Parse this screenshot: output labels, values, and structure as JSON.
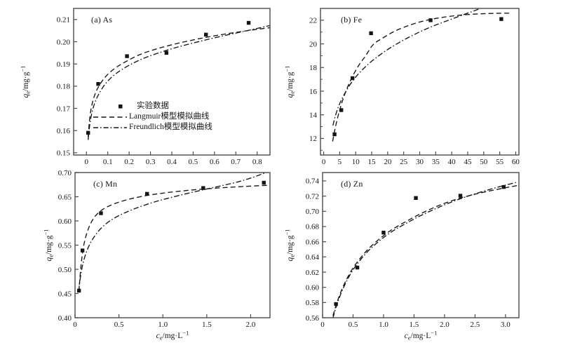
{
  "figure": {
    "background": "#ffffff",
    "frame_color": "#4a4a4a",
    "ink_color": "#151515"
  },
  "axis_labels": {
    "y_plain": "qe/mg·g-1",
    "x_plain": "ce/mg·L-1",
    "y_parts": {
      "sym": "q",
      "sub": "e",
      "mid": "/mg·g",
      "sup": "−1"
    },
    "x_parts": {
      "sym": "c",
      "sub": "e",
      "mid": "/mg·L",
      "sup": "−1"
    }
  },
  "legend": {
    "items": [
      {
        "symbol": "square-marker",
        "label": "实验数据"
      },
      {
        "symbol": "dash-line",
        "label": "Langmuir模型模拟曲线"
      },
      {
        "symbol": "dashdot-line",
        "label": "Freundlich模型模拟曲线"
      }
    ]
  },
  "chart_data": [
    {
      "id": "a",
      "type": "scatter",
      "title": "(a) As",
      "ylabel": "qe/mg·g-1",
      "xlabel": "",
      "xlim": [
        -0.06,
        0.86
      ],
      "ylim": [
        0.149,
        0.215
      ],
      "xticks": [
        0,
        0.1,
        0.2,
        0.3,
        0.4,
        0.5,
        0.6,
        0.7,
        0.8
      ],
      "xtick_labels": [
        "0",
        "0.1",
        "0.2",
        "0.3",
        "0.4",
        "0.5",
        "0.6",
        "0.7",
        "0.8"
      ],
      "yticks": [
        0.15,
        0.16,
        0.17,
        0.18,
        0.19,
        0.2,
        0.21
      ],
      "ytick_labels": [
        "0.15",
        "0.16",
        "0.17",
        "0.18",
        "0.19",
        "0.20",
        "0.21"
      ],
      "y_minor_step": 0,
      "points": [
        [
          0.008,
          0.159
        ],
        [
          0.055,
          0.181
        ],
        [
          0.19,
          0.1935
        ],
        [
          0.375,
          0.195
        ],
        [
          0.56,
          0.2032
        ],
        [
          0.76,
          0.2085
        ]
      ],
      "series": [
        {
          "name": "Langmuir模型模拟曲线",
          "style": "dash",
          "values": [
            [
              0.008,
              0.1572
            ],
            [
              0.015,
              0.1652
            ],
            [
              0.025,
              0.1713
            ],
            [
              0.04,
              0.1763
            ],
            [
              0.06,
              0.1803
            ],
            [
              0.09,
              0.1843
            ],
            [
              0.13,
              0.1878
            ],
            [
              0.18,
              0.1908
            ],
            [
              0.25,
              0.1942
            ],
            [
              0.33,
              0.1968
            ],
            [
              0.42,
              0.1991
            ],
            [
              0.52,
              0.2012
            ],
            [
              0.62,
              0.203
            ],
            [
              0.72,
              0.2045
            ],
            [
              0.8,
              0.2056
            ],
            [
              0.86,
              0.2063
            ]
          ]
        },
        {
          "name": "Freundlich模型模拟曲线",
          "style": "dashdot",
          "values": [
            [
              0.008,
              0.1558
            ],
            [
              0.015,
              0.1622
            ],
            [
              0.025,
              0.1678
            ],
            [
              0.04,
              0.1727
            ],
            [
              0.06,
              0.1768
            ],
            [
              0.09,
              0.1812
            ],
            [
              0.13,
              0.185
            ],
            [
              0.18,
              0.1883
            ],
            [
              0.25,
              0.1918
            ],
            [
              0.33,
              0.1947
            ],
            [
              0.42,
              0.1974
            ],
            [
              0.52,
              0.1999
            ],
            [
              0.62,
              0.2022
            ],
            [
              0.72,
              0.2043
            ],
            [
              0.8,
              0.206
            ],
            [
              0.86,
              0.2073
            ]
          ]
        }
      ]
    },
    {
      "id": "b",
      "type": "scatter",
      "title": "(b) Fe",
      "ylabel": "qe/mg·g-1",
      "xlabel": "",
      "xlim": [
        -1,
        61
      ],
      "ylim": [
        10.6,
        23
      ],
      "xticks": [
        0,
        5,
        10,
        15,
        20,
        25,
        30,
        35,
        40,
        45,
        50,
        55,
        60
      ],
      "xtick_labels": [
        "0",
        "5",
        "10",
        "15",
        "20",
        "25",
        "30",
        "35",
        "40",
        "45",
        "50",
        "55",
        "60"
      ],
      "yticks": [
        12,
        14,
        16,
        18,
        20,
        22
      ],
      "ytick_labels": [
        "12",
        "14",
        "16",
        "18",
        "20",
        "22"
      ],
      "y_minor_step": 1,
      "points": [
        [
          3.4,
          12.35
        ],
        [
          5.5,
          14.4
        ],
        [
          9,
          17.1
        ],
        [
          14.8,
          20.9
        ],
        [
          33.4,
          22
        ],
        [
          55.5,
          22.1
        ]
      ],
      "series": [
        {
          "name": "Langmuir模型模拟曲线",
          "style": "dash",
          "values": [
            [
              2.8,
              11.75
            ],
            [
              3.5,
              12.75
            ],
            [
              4.3,
              13.7
            ],
            [
              5.2,
              14.6
            ],
            [
              6.2,
              15.45
            ],
            [
              7.4,
              16.3
            ],
            [
              9,
              17.25
            ],
            [
              11,
              18.2
            ],
            [
              13,
              18.95
            ],
            [
              15.5,
              19.95
            ],
            [
              18.5,
              20.5
            ],
            [
              22,
              21.05
            ],
            [
              26,
              21.5
            ],
            [
              30,
              21.85
            ],
            [
              34,
              22.1
            ],
            [
              38,
              22.28
            ],
            [
              43,
              22.44
            ],
            [
              48,
              22.53
            ],
            [
              53,
              22.58
            ],
            [
              58,
              22.6
            ]
          ]
        },
        {
          "name": "Freundlich模型模拟曲线",
          "style": "dashdot",
          "values": [
            [
              2.9,
              13.1
            ],
            [
              3.6,
              13.85
            ],
            [
              4.5,
              14.6
            ],
            [
              5.6,
              15.3
            ],
            [
              7,
              16
            ],
            [
              8.6,
              16.7
            ],
            [
              10.5,
              17.35
            ],
            [
              12.8,
              18
            ],
            [
              15.3,
              18.6
            ],
            [
              18,
              19.15
            ],
            [
              21,
              19.7
            ],
            [
              24.5,
              20.25
            ],
            [
              28,
              20.75
            ],
            [
              31.5,
              21.2
            ],
            [
              35,
              21.6
            ],
            [
              38.5,
              21.95
            ],
            [
              42,
              22.3
            ],
            [
              45.5,
              22.65
            ],
            [
              48.5,
              22.95
            ],
            [
              51,
              23.25
            ]
          ]
        }
      ]
    },
    {
      "id": "c",
      "type": "scatter",
      "title": "(c) Mn",
      "ylabel": "qe/mg·g-1",
      "xlabel": "ce/mg·L-1",
      "xlim": [
        0,
        2.22
      ],
      "ylim": [
        0.4,
        0.7
      ],
      "xticks": [
        0,
        0.5,
        1.0,
        1.5,
        2.0
      ],
      "xtick_labels": [
        "0",
        "0.5",
        "1.0",
        "1.5",
        "2.0"
      ],
      "yticks": [
        0.4,
        0.45,
        0.5,
        0.55,
        0.6,
        0.65,
        0.7
      ],
      "ytick_labels": [
        "0.40",
        "0.45",
        "0.50",
        "0.55",
        "0.60",
        "0.65",
        "0.70"
      ],
      "y_minor_step": 0,
      "points": [
        [
          0.045,
          0.456
        ],
        [
          0.085,
          0.539
        ],
        [
          0.295,
          0.616
        ],
        [
          0.82,
          0.656
        ],
        [
          1.46,
          0.668
        ],
        [
          2.15,
          0.679
        ]
      ],
      "series": [
        {
          "name": "Langmuir模型模拟曲线",
          "style": "dash",
          "values": [
            [
              0.042,
              0.452
            ],
            [
              0.055,
              0.48
            ],
            [
              0.07,
              0.511
            ],
            [
              0.09,
              0.54
            ],
            [
              0.115,
              0.5625
            ],
            [
              0.145,
              0.5805
            ],
            [
              0.18,
              0.5955
            ],
            [
              0.22,
              0.6075
            ],
            [
              0.27,
              0.6175
            ],
            [
              0.33,
              0.6255
            ],
            [
              0.42,
              0.6335
            ],
            [
              0.52,
              0.64
            ],
            [
              0.65,
              0.6465
            ],
            [
              0.8,
              0.652
            ],
            [
              0.95,
              0.6562
            ],
            [
              1.15,
              0.6607
            ],
            [
              1.4,
              0.665
            ],
            [
              1.65,
              0.6683
            ],
            [
              1.95,
              0.6715
            ],
            [
              2.22,
              0.6738
            ]
          ]
        },
        {
          "name": "Freundlich模型模拟曲线",
          "style": "dashdot",
          "values": [
            [
              0.042,
              0.4555
            ],
            [
              0.06,
              0.482
            ],
            [
              0.08,
              0.5035
            ],
            [
              0.105,
              0.522
            ],
            [
              0.135,
              0.5385
            ],
            [
              0.17,
              0.5525
            ],
            [
              0.21,
              0.565
            ],
            [
              0.26,
              0.5775
            ],
            [
              0.32,
              0.589
            ],
            [
              0.4,
              0.6005
            ],
            [
              0.5,
              0.611
            ],
            [
              0.62,
              0.621
            ],
            [
              0.75,
              0.63
            ],
            [
              0.9,
              0.639
            ],
            [
              1.05,
              0.6465
            ],
            [
              1.25,
              0.6555
            ],
            [
              1.45,
              0.664
            ],
            [
              1.65,
              0.672
            ],
            [
              1.85,
              0.6805
            ],
            [
              2.0,
              0.6885
            ],
            [
              2.1,
              0.695
            ],
            [
              2.18,
              0.7005
            ]
          ]
        }
      ]
    },
    {
      "id": "d",
      "type": "scatter",
      "title": "(d) Zn",
      "ylabel": "qe/mg·g-1",
      "xlabel": "ce/mg·L-1",
      "xlim": [
        0,
        3.22
      ],
      "ylim": [
        0.56,
        0.751
      ],
      "xticks": [
        0,
        0.5,
        1.0,
        1.5,
        2.0,
        2.5,
        3.0
      ],
      "xtick_labels": [
        "0",
        "0.5",
        "1.0",
        "1.5",
        "2.0",
        "2.5",
        "3.0"
      ],
      "yticks": [
        0.56,
        0.58,
        0.6,
        0.62,
        0.64,
        0.66,
        0.68,
        0.7,
        0.72,
        0.74
      ],
      "ytick_labels": [
        "0.56",
        "0.58",
        "0.60",
        "0.62",
        "0.64",
        "0.66",
        "0.68",
        "0.70",
        "0.72",
        "0.74"
      ],
      "y_minor_step": 0,
      "points": [
        [
          0.22,
          0.578
        ],
        [
          0.57,
          0.626
        ],
        [
          1.0,
          0.672
        ],
        [
          1.53,
          0.7175
        ],
        [
          2.26,
          0.7205
        ],
        [
          2.97,
          0.732
        ]
      ],
      "series": [
        {
          "name": "Langmuir模型模拟曲线",
          "style": "dash",
          "values": [
            [
              0.17,
              0.5625
            ],
            [
              0.22,
              0.576
            ],
            [
              0.3,
              0.594
            ],
            [
              0.4,
              0.6115
            ],
            [
              0.5,
              0.6255
            ],
            [
              0.62,
              0.6385
            ],
            [
              0.75,
              0.6505
            ],
            [
              0.9,
              0.6615
            ],
            [
              1.05,
              0.671
            ],
            [
              1.2,
              0.679
            ],
            [
              1.4,
              0.688
            ],
            [
              1.6,
              0.6965
            ],
            [
              1.8,
              0.704
            ],
            [
              2.0,
              0.7105
            ],
            [
              2.26,
              0.7175
            ],
            [
              2.5,
              0.7225
            ],
            [
              2.75,
              0.727
            ],
            [
              3.0,
              0.731
            ],
            [
              3.2,
              0.734
            ]
          ]
        },
        {
          "name": "Freundlich模型模拟曲线",
          "style": "dashdot",
          "values": [
            [
              0.17,
              0.5595
            ],
            [
              0.22,
              0.5735
            ],
            [
              0.3,
              0.5915
            ],
            [
              0.4,
              0.609
            ],
            [
              0.5,
              0.623
            ],
            [
              0.62,
              0.636
            ],
            [
              0.75,
              0.648
            ],
            [
              0.9,
              0.659
            ],
            [
              1.05,
              0.6685
            ],
            [
              1.2,
              0.6765
            ],
            [
              1.4,
              0.6855
            ],
            [
              1.6,
              0.694
            ],
            [
              1.8,
              0.7015
            ],
            [
              2.0,
              0.7085
            ],
            [
              2.26,
              0.7165
            ],
            [
              2.5,
              0.723
            ],
            [
              2.75,
              0.729
            ],
            [
              3.0,
              0.7345
            ],
            [
              3.2,
              0.7385
            ]
          ]
        }
      ]
    }
  ]
}
